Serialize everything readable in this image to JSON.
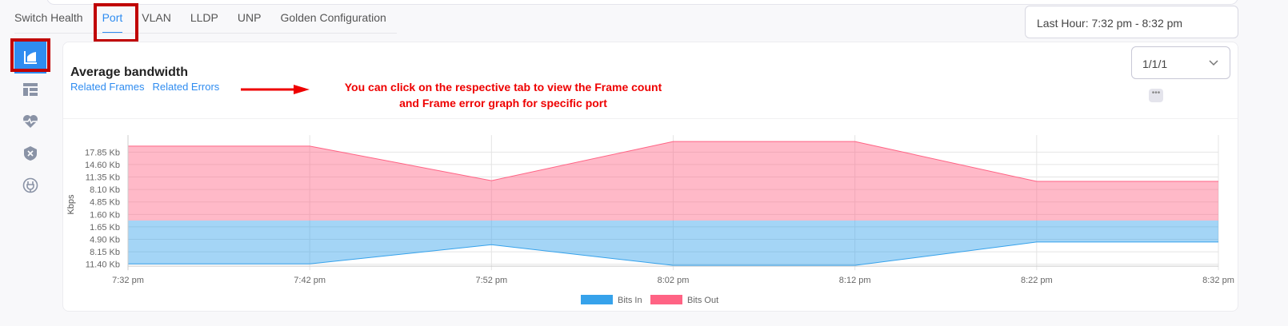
{
  "tabs": [
    "Switch Health",
    "Port",
    "VLAN",
    "LLDP",
    "UNP",
    "Golden Configuration"
  ],
  "active_tab": "Port",
  "time_range": "Last Hour: 7:32 pm - 8:32 pm",
  "sidebar_icons": [
    "area-chart-icon",
    "table-icon",
    "heart-pulse-icon",
    "shield-x-icon",
    "plug-icon"
  ],
  "card": {
    "title": "Average bandwidth",
    "link1": "Related Frames",
    "link2": "Related Errors",
    "port_select": "1/1/1",
    "more": "•••"
  },
  "annotation": {
    "line1": "You can click on the respective tab to view the Frame count",
    "line2": "and Frame error graph for specific port"
  },
  "colors": {
    "accent": "#2f8cf0",
    "bits_in": "#36a2eb",
    "bits_out": "#ff6384",
    "annotation": "#e00000"
  },
  "chart_data": {
    "type": "area",
    "ylabel": "Kbps",
    "x": [
      "7:32 pm",
      "7:42 pm",
      "7:52 pm",
      "8:02 pm",
      "8:12 pm",
      "8:22 pm",
      "8:32 pm"
    ],
    "yticks_upper": [
      "1.60 Kb",
      "4.85 Kb",
      "8.10 Kb",
      "11.35 Kb",
      "14.60 Kb",
      "17.85 Kb"
    ],
    "yticks_lower": [
      "1.65 Kb",
      "4.90 Kb",
      "8.15 Kb",
      "11.40 Kb"
    ],
    "series": [
      {
        "name": "Bits In",
        "direction": "down",
        "values": [
          11.3,
          11.3,
          6.3,
          11.7,
          11.7,
          5.6,
          5.6
        ]
      },
      {
        "name": "Bits Out",
        "direction": "up",
        "values": [
          19.4,
          19.4,
          10.4,
          20.6,
          20.6,
          10.2,
          10.2
        ]
      }
    ],
    "grid": true,
    "legend": "bottom"
  }
}
